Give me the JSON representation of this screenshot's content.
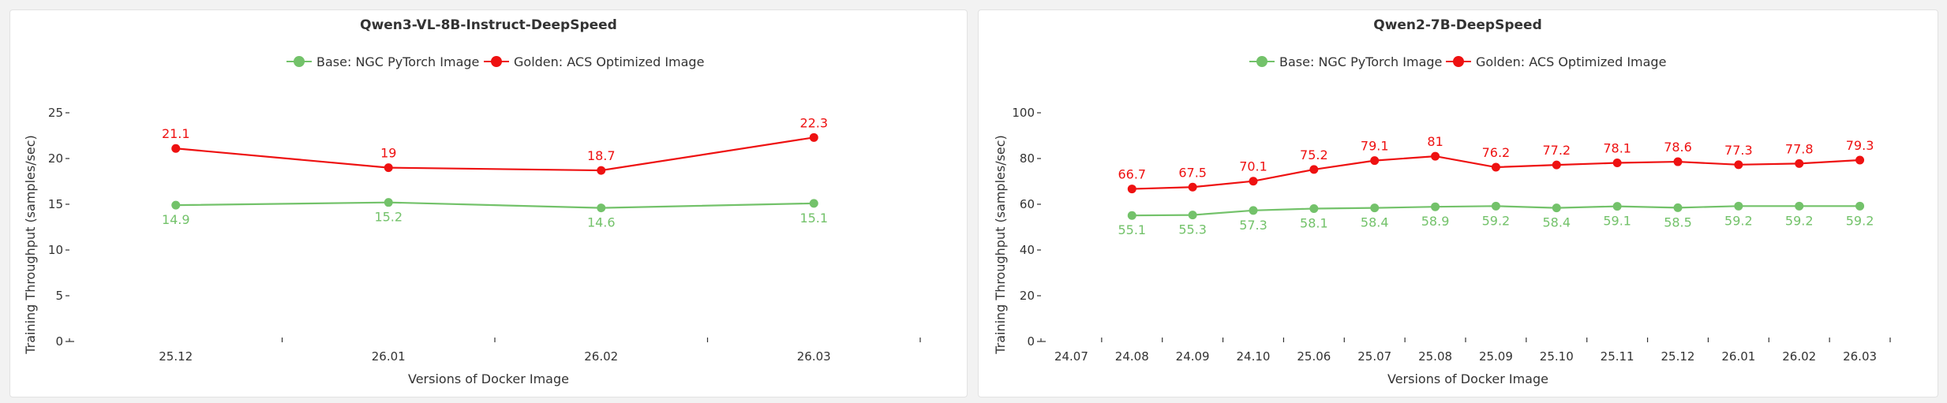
{
  "colors": {
    "base": "#73c26a",
    "golden": "#ee1111",
    "axis": "#333333"
  },
  "charts": [
    {
      "title": "Qwen3-VL-8B-Instruct-DeepSpeed",
      "legend": [
        "Base: NGC PyTorch Image",
        "Golden: ACS Optimized Image"
      ],
      "ylabel": "Training Throughput (samples/sec)",
      "xlabel": "Versions of Docker Image",
      "yticks": [
        "0",
        "5",
        "10",
        "15",
        "20",
        "25"
      ],
      "xticks": [
        "25.12",
        "26.01",
        "26.02",
        "26.03"
      ]
    },
    {
      "title": "Qwen2-7B-DeepSpeed",
      "legend": [
        "Base: NGC PyTorch Image",
        "Golden: ACS Optimized Image"
      ],
      "ylabel": "Training Throughput (samples/sec)",
      "xlabel": "Versions of Docker Image",
      "yticks": [
        "0",
        "20",
        "40",
        "60",
        "80",
        "100"
      ],
      "xticks": [
        "24.07",
        "24.08",
        "24.09",
        "24.10",
        "25.06",
        "25.07",
        "25.08",
        "25.09",
        "25.10",
        "25.11",
        "25.12",
        "26.01",
        "26.02",
        "26.03"
      ]
    }
  ],
  "chart_data": [
    {
      "type": "line",
      "title": "Qwen3-VL-8B-Instruct-DeepSpeed",
      "xlabel": "Versions of Docker Image",
      "ylabel": "Training Throughput (samples/sec)",
      "categories": [
        "25.12",
        "26.01",
        "26.02",
        "26.03"
      ],
      "ylim": [
        0,
        25
      ],
      "legend_position": "top-center",
      "grid": false,
      "series": [
        {
          "name": "Base: NGC PyTorch Image",
          "color": "#73c26a",
          "values": [
            14.9,
            15.2,
            14.6,
            15.1
          ]
        },
        {
          "name": "Golden: ACS Optimized Image",
          "color": "#ee1111",
          "values": [
            21.1,
            19,
            18.7,
            22.3
          ]
        }
      ]
    },
    {
      "type": "line",
      "title": "Qwen2-7B-DeepSpeed",
      "xlabel": "Versions of Docker Image",
      "ylabel": "Training Throughput (samples/sec)",
      "categories": [
        "24.07",
        "24.08",
        "24.09",
        "24.10",
        "25.06",
        "25.07",
        "25.08",
        "25.09",
        "25.10",
        "25.11",
        "25.12",
        "26.01",
        "26.02",
        "26.03"
      ],
      "ylim": [
        0,
        100
      ],
      "legend_position": "top-center",
      "grid": false,
      "series": [
        {
          "name": "Base: NGC PyTorch Image",
          "color": "#73c26a",
          "values": [
            null,
            55.1,
            55.3,
            57.3,
            58.1,
            58.4,
            58.9,
            59.2,
            58.4,
            59.1,
            58.5,
            59.2,
            59.2,
            59.2
          ]
        },
        {
          "name": "Golden: ACS Optimized Image",
          "color": "#ee1111",
          "values": [
            null,
            66.7,
            67.5,
            70.1,
            75.2,
            79.1,
            81,
            76.2,
            77.2,
            78.1,
            78.6,
            77.3,
            77.8,
            79.3
          ]
        }
      ]
    }
  ]
}
